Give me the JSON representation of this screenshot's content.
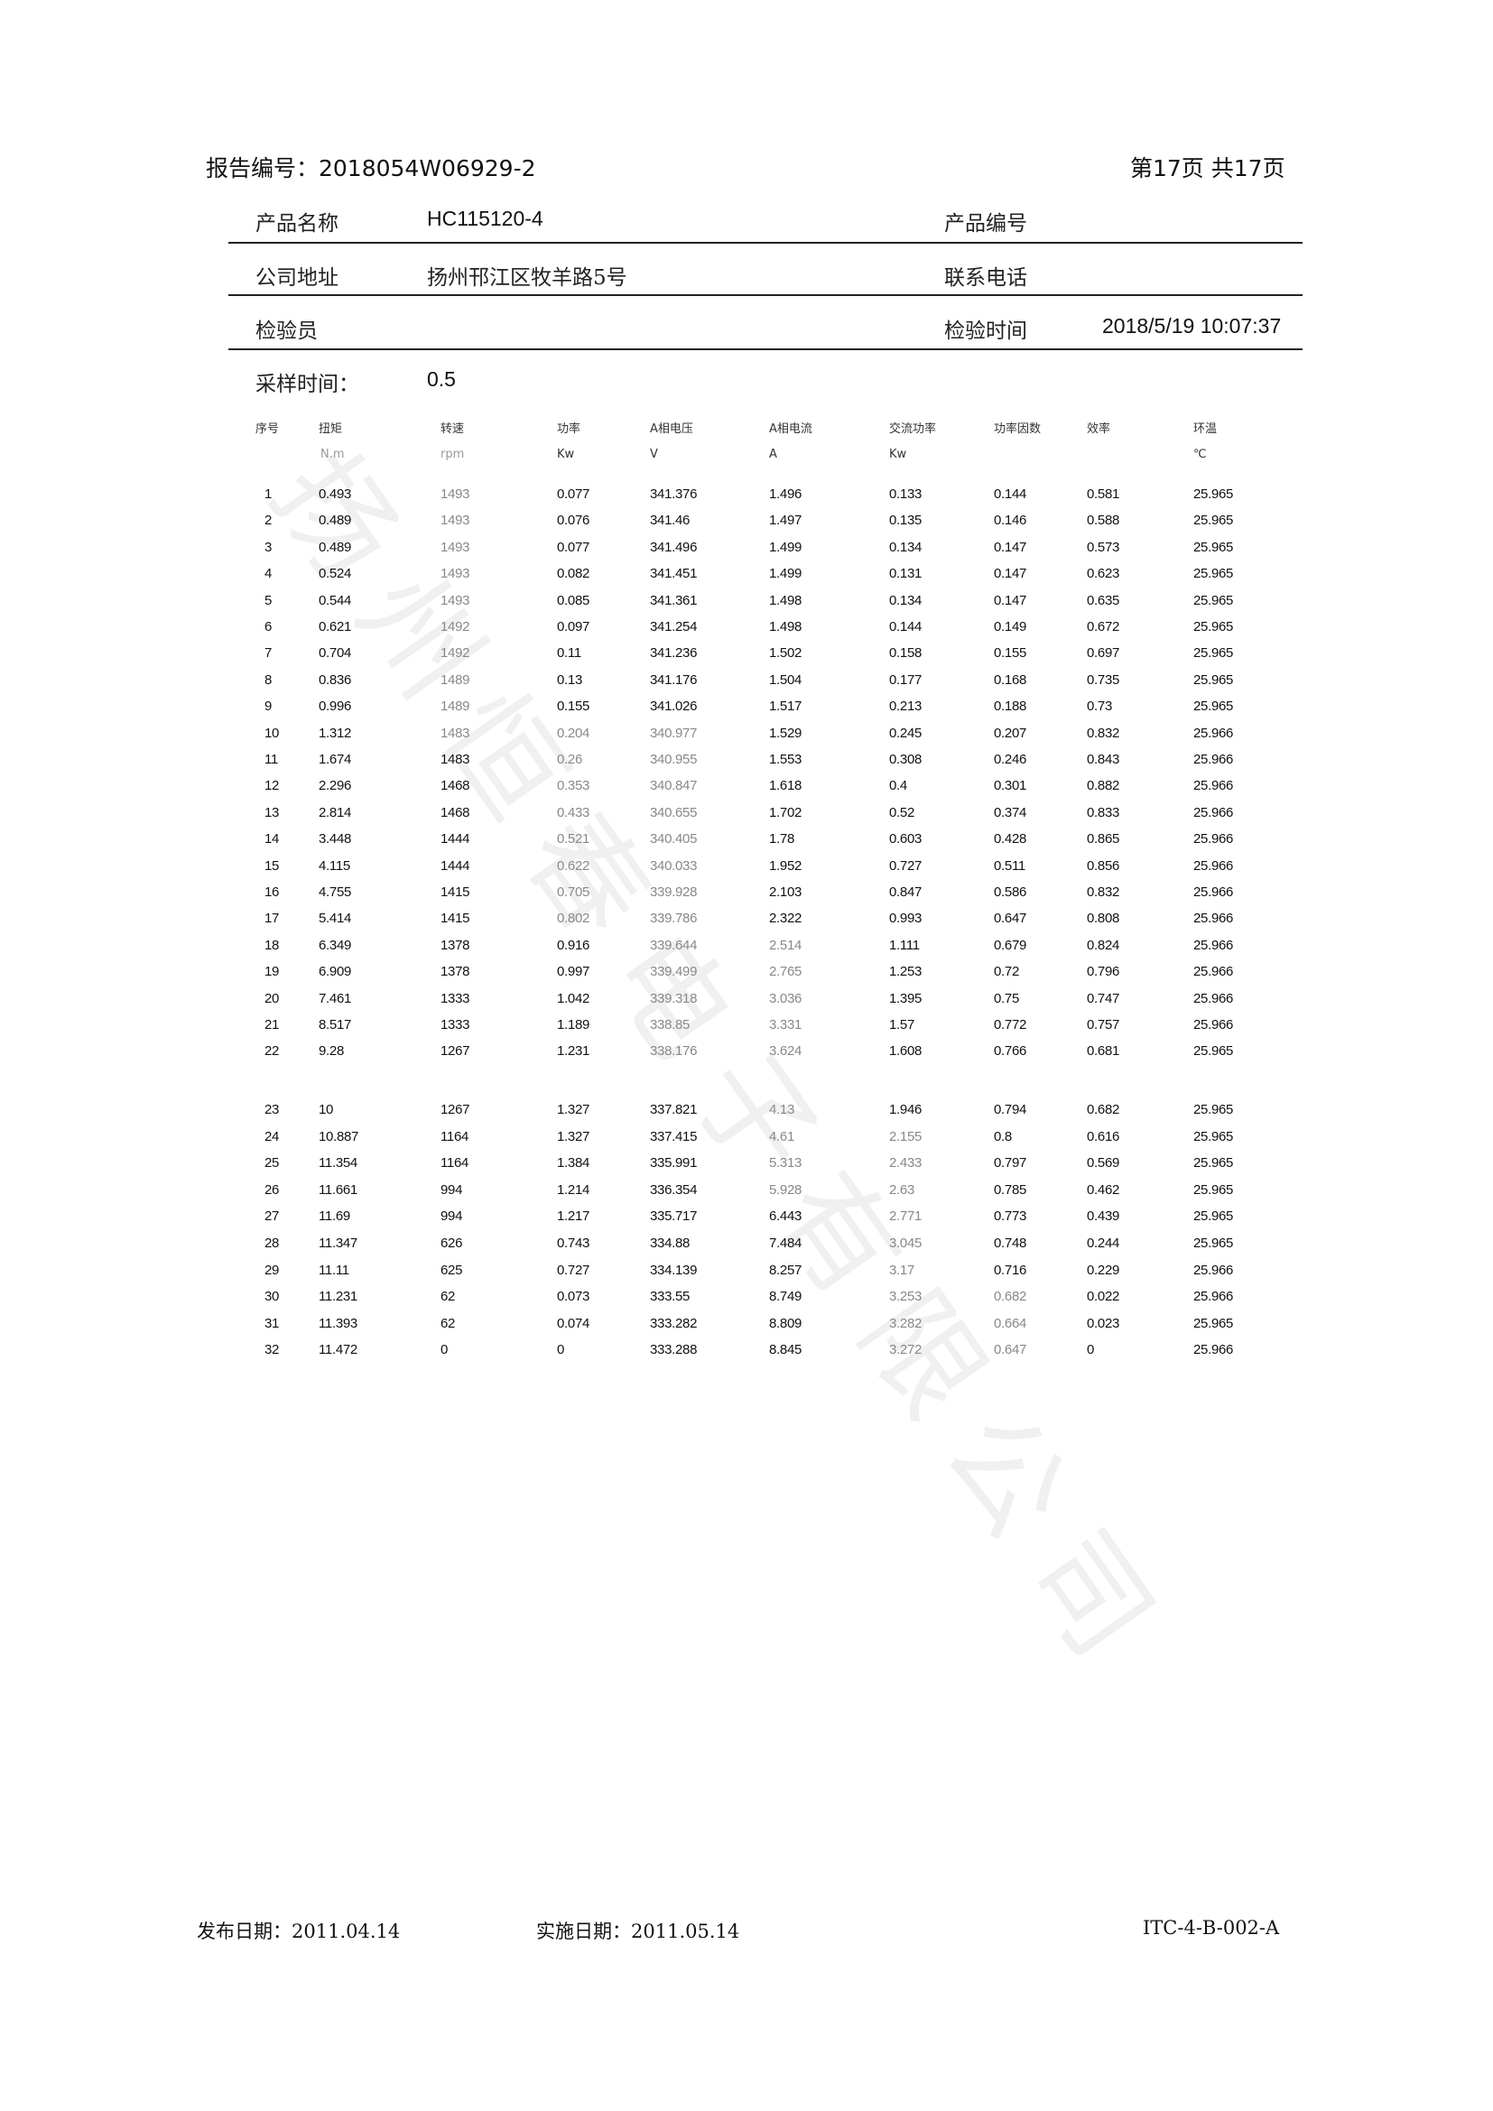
{
  "header": {
    "report_no": "报告编号：2018054W06929-2",
    "page_info": "第17页  共17页"
  },
  "info": {
    "product_name_label": "产品名称",
    "product_name": "HC115120-4",
    "product_no_label": "产品编号",
    "company_address_label": "公司地址",
    "company_address": "扬州邗江区牧羊路5号",
    "phone_label": "联系电话",
    "inspector_label": "检验员",
    "inspect_time_label": "检验时间",
    "inspect_time": "2018/5/19 10:07:37",
    "sample_time_label": "采样时间：",
    "sample_time": "0.5"
  },
  "table": {
    "columns": [
      {
        "label": "序号",
        "unit": ""
      },
      {
        "label": "扭矩",
        "unit": "N.m"
      },
      {
        "label": "转速",
        "unit": "rpm"
      },
      {
        "label": "功率",
        "unit": "Kw"
      },
      {
        "label": "A相电压",
        "unit": "V"
      },
      {
        "label": "A相电流",
        "unit": "A"
      },
      {
        "label": "交流功率",
        "unit": "Kw"
      },
      {
        "label": "功率因数",
        "unit": ""
      },
      {
        "label": "效率",
        "unit": ""
      },
      {
        "label": "环温",
        "unit": "℃"
      }
    ],
    "rows": [
      [
        "1",
        "0.493",
        "1493",
        "0.077",
        "341.376",
        "1.496",
        "0.133",
        "0.144",
        "0.581",
        "25.965"
      ],
      [
        "2",
        "0.489",
        "1493",
        "0.076",
        "341.46",
        "1.497",
        "0.135",
        "0.146",
        "0.588",
        "25.965"
      ],
      [
        "3",
        "0.489",
        "1493",
        "0.077",
        "341.496",
        "1.499",
        "0.134",
        "0.147",
        "0.573",
        "25.965"
      ],
      [
        "4",
        "0.524",
        "1493",
        "0.082",
        "341.451",
        "1.499",
        "0.131",
        "0.147",
        "0.623",
        "25.965"
      ],
      [
        "5",
        "0.544",
        "1493",
        "0.085",
        "341.361",
        "1.498",
        "0.134",
        "0.147",
        "0.635",
        "25.965"
      ],
      [
        "6",
        "0.621",
        "1492",
        "0.097",
        "341.254",
        "1.498",
        "0.144",
        "0.149",
        "0.672",
        "25.965"
      ],
      [
        "7",
        "0.704",
        "1492",
        "0.11",
        "341.236",
        "1.502",
        "0.158",
        "0.155",
        "0.697",
        "25.965"
      ],
      [
        "8",
        "0.836",
        "1489",
        "0.13",
        "341.176",
        "1.504",
        "0.177",
        "0.168",
        "0.735",
        "25.965"
      ],
      [
        "9",
        "0.996",
        "1489",
        "0.155",
        "341.026",
        "1.517",
        "0.213",
        "0.188",
        "0.73",
        "25.965"
      ],
      [
        "10",
        "1.312",
        "1483",
        "0.204",
        "340.977",
        "1.529",
        "0.245",
        "0.207",
        "0.832",
        "25.966"
      ],
      [
        "11",
        "1.674",
        "1483",
        "0.26",
        "340.955",
        "1.553",
        "0.308",
        "0.246",
        "0.843",
        "25.966"
      ],
      [
        "12",
        "2.296",
        "1468",
        "0.353",
        "340.847",
        "1.618",
        "0.4",
        "0.301",
        "0.882",
        "25.966"
      ],
      [
        "13",
        "2.814",
        "1468",
        "0.433",
        "340.655",
        "1.702",
        "0.52",
        "0.374",
        "0.833",
        "25.966"
      ],
      [
        "14",
        "3.448",
        "1444",
        "0.521",
        "340.405",
        "1.78",
        "0.603",
        "0.428",
        "0.865",
        "25.966"
      ],
      [
        "15",
        "4.115",
        "1444",
        "0.622",
        "340.033",
        "1.952",
        "0.727",
        "0.511",
        "0.856",
        "25.966"
      ],
      [
        "16",
        "4.755",
        "1415",
        "0.705",
        "339.928",
        "2.103",
        "0.847",
        "0.586",
        "0.832",
        "25.966"
      ],
      [
        "17",
        "5.414",
        "1415",
        "0.802",
        "339.786",
        "2.322",
        "0.993",
        "0.647",
        "0.808",
        "25.966"
      ],
      [
        "18",
        "6.349",
        "1378",
        "0.916",
        "339.644",
        "2.514",
        "1.111",
        "0.679",
        "0.824",
        "25.966"
      ],
      [
        "19",
        "6.909",
        "1378",
        "0.997",
        "339.499",
        "2.765",
        "1.253",
        "0.72",
        "0.796",
        "25.966"
      ],
      [
        "20",
        "7.461",
        "1333",
        "1.042",
        "339.318",
        "3.036",
        "1.395",
        "0.75",
        "0.747",
        "25.966"
      ],
      [
        "21",
        "8.517",
        "1333",
        "1.189",
        "338.85",
        "3.331",
        "1.57",
        "0.772",
        "0.757",
        "25.966"
      ],
      [
        "22",
        "9.28",
        "1267",
        "1.231",
        "338.176",
        "3.624",
        "1.608",
        "0.766",
        "0.681",
        "25.965"
      ],
      [
        "23",
        "10",
        "1267",
        "1.327",
        "337.821",
        "4.13",
        "1.946",
        "0.794",
        "0.682",
        "25.965"
      ],
      [
        "24",
        "10.887",
        "1164",
        "1.327",
        "337.415",
        "4.61",
        "2.155",
        "0.8",
        "0.616",
        "25.965"
      ],
      [
        "25",
        "11.354",
        "1164",
        "1.384",
        "335.991",
        "5.313",
        "2.433",
        "0.797",
        "0.569",
        "25.965"
      ],
      [
        "26",
        "11.661",
        "994",
        "1.214",
        "336.354",
        "5.928",
        "2.63",
        "0.785",
        "0.462",
        "25.965"
      ],
      [
        "27",
        "11.69",
        "994",
        "1.217",
        "335.717",
        "6.443",
        "2.771",
        "0.773",
        "0.439",
        "25.965"
      ],
      [
        "28",
        "11.347",
        "626",
        "0.743",
        "334.88",
        "7.484",
        "3.045",
        "0.748",
        "0.244",
        "25.965"
      ],
      [
        "29",
        "11.11",
        "625",
        "0.727",
        "334.139",
        "8.257",
        "3.17",
        "0.716",
        "0.229",
        "25.966"
      ],
      [
        "30",
        "11.231",
        "62",
        "0.073",
        "333.55",
        "8.749",
        "3.253",
        "0.682",
        "0.022",
        "25.966"
      ],
      [
        "31",
        "11.393",
        "62",
        "0.074",
        "333.282",
        "8.809",
        "3.282",
        "0.664",
        "0.023",
        "25.965"
      ],
      [
        "32",
        "11.472",
        "0",
        "0",
        "333.288",
        "8.845",
        "3.272",
        "0.647",
        "0",
        "25.966"
      ]
    ]
  },
  "footer": {
    "publish_date": "发布日期：2011.04.14",
    "effective_date": "实施日期：2011.05.14",
    "doc_code": "ITC-4-B-002-A"
  },
  "watermark": "扬州恒春电子有限公司"
}
